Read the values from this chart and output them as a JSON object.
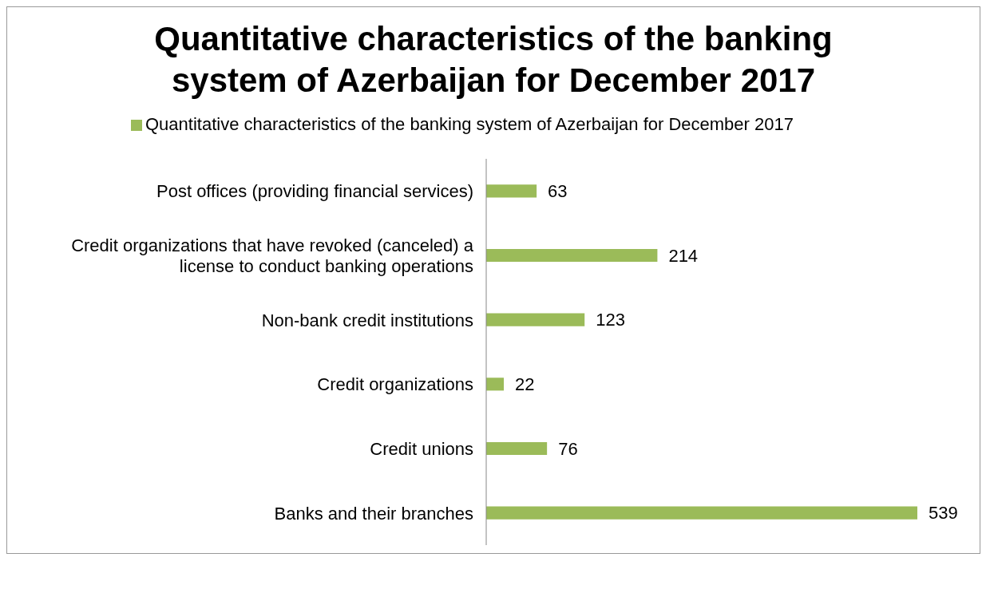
{
  "chart_data": {
    "type": "bar",
    "orientation": "horizontal",
    "title": "Quantitative characteristics of the banking system of Azerbaijan for December 2017",
    "categories": [
      "Post offices (providing financial services)",
      "Credit organizations that have revoked (canceled) a license to conduct banking operations",
      "Non-bank credit institutions",
      "Credit organizations",
      "Credit unions",
      "Banks and their branches"
    ],
    "series": [
      {
        "name": "Quantitative characteristics of the banking system of Azerbaijan for December 2017",
        "color": "#9bbb59",
        "values": [
          63,
          214,
          123,
          22,
          76,
          539
        ]
      }
    ],
    "data_labels": true,
    "legend": "top"
  }
}
